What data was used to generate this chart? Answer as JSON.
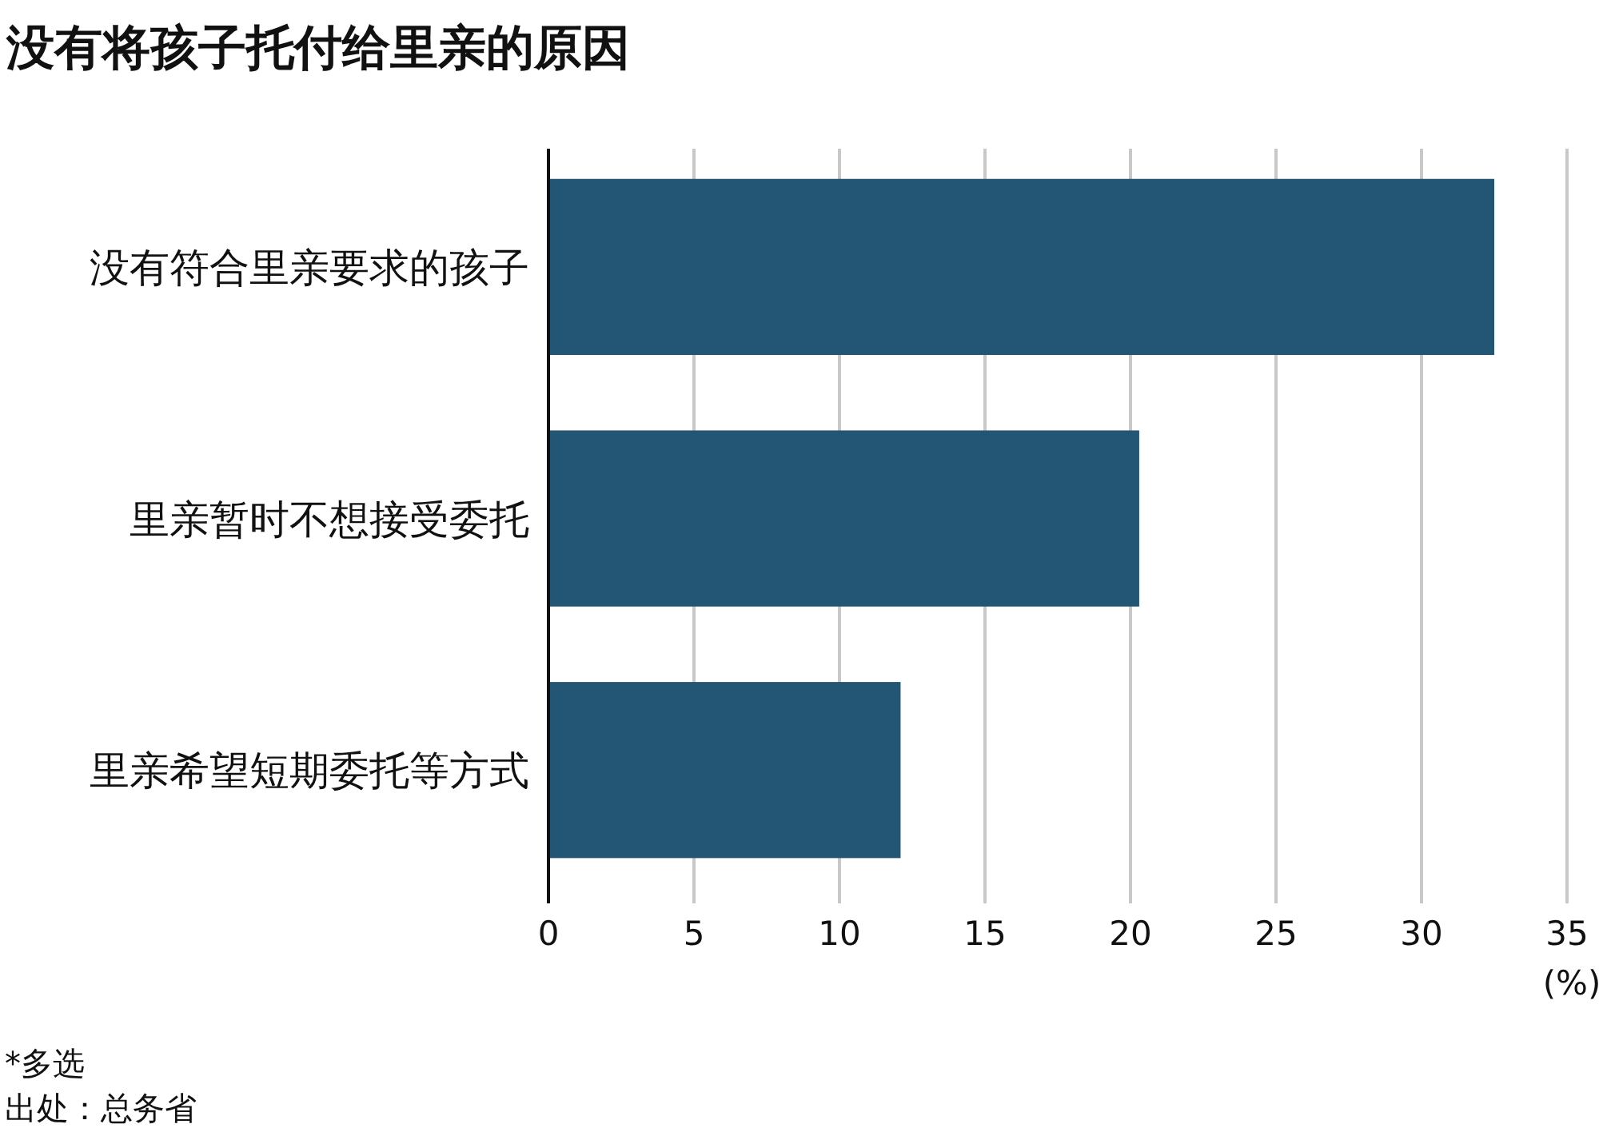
{
  "chart_data": {
    "type": "bar",
    "orientation": "horizontal",
    "title": "没有将孩子托付给里亲的原因",
    "categories": [
      "没有符合里亲要求的孩子",
      "里亲暂时不想接受委托",
      "里亲希望短期委托等方式"
    ],
    "values": [
      32.5,
      20.3,
      12.1
    ],
    "color": "#235574",
    "xlim": [
      0,
      35
    ],
    "xticks": [
      0,
      5,
      10,
      15,
      20,
      25,
      30,
      35
    ],
    "xlabel": "(%)",
    "grid": "x",
    "annotations": [
      "*多选",
      "出处：总务省"
    ]
  }
}
